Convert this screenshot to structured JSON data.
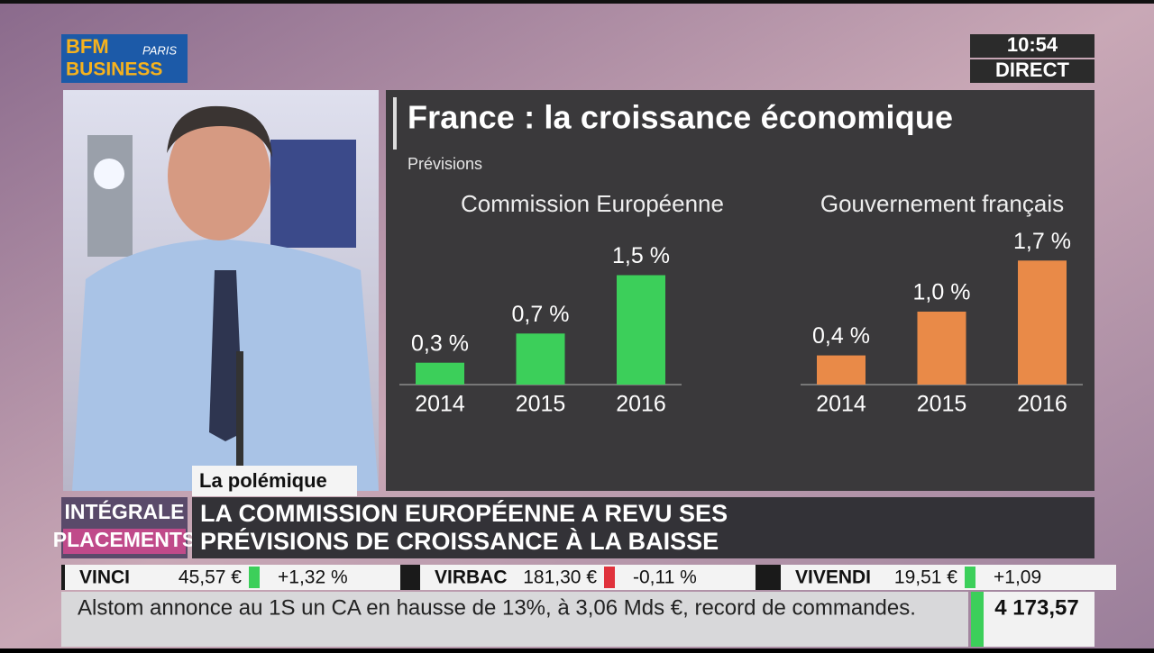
{
  "logo": {
    "brand": "BFM",
    "city": "PARIS",
    "channel": "BUSINESS"
  },
  "clock": {
    "time": "10:54",
    "status": "DIRECT"
  },
  "panel": {
    "title": "France : la croissance économique",
    "subtitle": "Prévisions"
  },
  "chart_data": [
    {
      "type": "bar",
      "title": "Commission Européenne",
      "categories": [
        "2014",
        "2015",
        "2016"
      ],
      "values": [
        0.3,
        0.7,
        1.5
      ],
      "value_labels": [
        "0,3 %",
        "0,7 %",
        "1,5 %"
      ],
      "color": "#3ccf5a"
    },
    {
      "type": "bar",
      "title": "Gouvernement français",
      "categories": [
        "2014",
        "2015",
        "2016"
      ],
      "values": [
        0.4,
        1.0,
        1.7
      ],
      "value_labels": [
        "0,4 %",
        "1,0 %",
        "1,7 %"
      ],
      "color": "#e98a48"
    }
  ],
  "lower_third": {
    "tag": "La polémique",
    "show_line1": "INTÉGRALE",
    "show_line2": "PLACEMENTS",
    "headline_line1": "LA COMMISSION EUROPÉENNE A REVU SES",
    "headline_line2": "PRÉVISIONS DE CROISSANCE À LA BAISSE"
  },
  "ticker": {
    "quotes": [
      {
        "name": "VINCI",
        "price": "45,57 €",
        "change": "+1,32 %"
      },
      {
        "name": "VIRBAC",
        "price": "181,30 €",
        "change": "-0,11 %"
      },
      {
        "name": "VIVENDI",
        "price": "19,51 €",
        "change": "+1,09"
      }
    ],
    "news": "Alstom annonce au 1S un CA en hausse de 13%, à 3,06 Mds €, record de commandes.",
    "index": "4 173,57"
  }
}
